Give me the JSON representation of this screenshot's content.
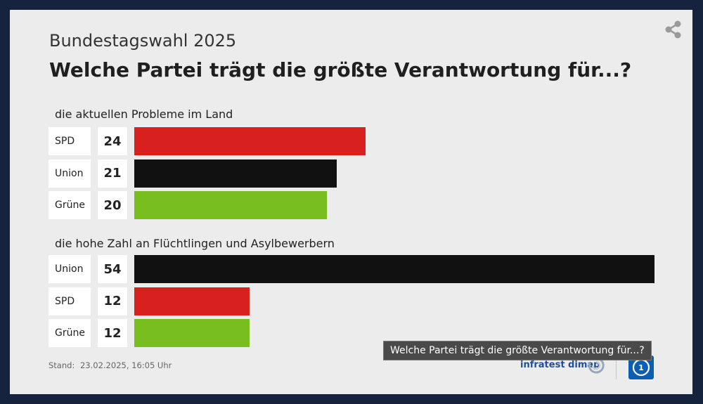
{
  "header": {
    "subtitle": "Bundestagswahl 2025",
    "title": "Welche Partei trägt die größte Verantwortung für...?"
  },
  "chart_data": [
    {
      "type": "bar",
      "orientation": "horizontal",
      "title": "die aktuellen Probleme im Land",
      "categories": [
        "SPD",
        "Union",
        "Grüne"
      ],
      "values": [
        24,
        21,
        20
      ],
      "colors": [
        "#d8201f",
        "#111111",
        "#78be1e"
      ],
      "xlim": [
        0,
        54
      ]
    },
    {
      "type": "bar",
      "orientation": "horizontal",
      "title": "die hohe Zahl an Flüchtlingen und Asylbewerbern",
      "categories": [
        "Union",
        "SPD",
        "Grüne"
      ],
      "values": [
        54,
        12,
        12
      ],
      "colors": [
        "#111111",
        "#d8201f",
        "#78be1e"
      ],
      "xlim": [
        0,
        54
      ]
    }
  ],
  "footer": {
    "stand_label": "Stand:",
    "stand_value": "23.02.2025, 16:05 Uhr"
  },
  "tooltip": {
    "text": "Welche Partei trägt die größte Verantwortung für...?"
  },
  "logos": {
    "infratest": "infratest dimap",
    "ard": "ard-logo-icon"
  },
  "share": {
    "icon": "share-icon"
  }
}
